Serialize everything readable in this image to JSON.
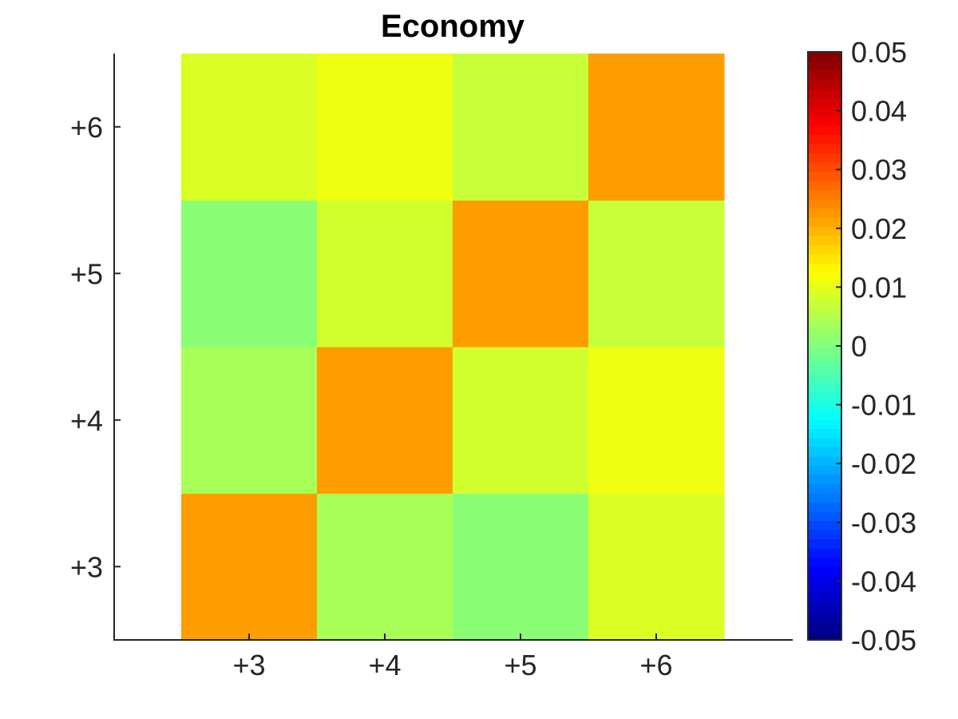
{
  "chart_data": {
    "type": "heatmap",
    "title": "Economy",
    "xlabel": "",
    "ylabel": "",
    "x_categories": [
      "+3",
      "+4",
      "+5",
      "+6"
    ],
    "y_categories": [
      "+3",
      "+4",
      "+5",
      "+6"
    ],
    "values": [
      [
        0.022,
        0.004,
        0.001,
        0.009
      ],
      [
        0.004,
        0.022,
        0.008,
        0.011
      ],
      [
        0.001,
        0.008,
        0.022,
        0.007
      ],
      [
        0.009,
        0.011,
        0.007,
        0.022
      ]
    ],
    "clim": [
      -0.05,
      0.05
    ],
    "colormap": "jet",
    "colorbar": {
      "ticks": [
        0.05,
        0.04,
        0.03,
        0.02,
        0.01,
        0,
        -0.01,
        -0.02,
        -0.03,
        -0.04,
        -0.05
      ],
      "tick_labels": [
        "0.05",
        "0.04",
        "0.03",
        "0.02",
        "0.01",
        "0",
        "-0.01",
        "-0.02",
        "-0.03",
        "-0.04",
        "-0.05"
      ]
    }
  }
}
